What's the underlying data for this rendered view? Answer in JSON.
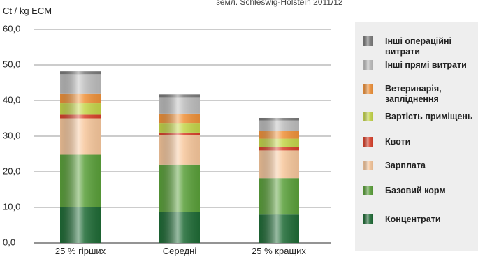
{
  "chart_data": {
    "type": "bar",
    "stacked": true,
    "subtitle": "земл. Schleswig-Holstein 2011/12",
    "ylabel": "Ct / kg ECM",
    "ylim": [
      0,
      60
    ],
    "yticks": [
      "0,0",
      "10,0",
      "20,0",
      "30,0",
      "40,0",
      "50,0",
      "60,0"
    ],
    "grid": true,
    "legend_position": "right",
    "categories": [
      "25 % гірших",
      "Середні",
      "25 % кращих"
    ],
    "series": [
      {
        "name": "Концентрати",
        "color": "#1f6b36",
        "values": [
          10.0,
          8.7,
          8.0
        ]
      },
      {
        "name": "Базовий корм",
        "color": "#5aa03a",
        "values": [
          14.8,
          13.3,
          10.2
        ]
      },
      {
        "name": "Зарплата",
        "color": "#f7c79c",
        "values": [
          10.2,
          8.2,
          7.8
        ]
      },
      {
        "name": "Квоти",
        "color": "#d9412b",
        "values": [
          1.0,
          0.8,
          1.0
        ]
      },
      {
        "name": "Вартість приміщень",
        "color": "#c5d64a",
        "values": [
          3.2,
          2.7,
          2.3
        ]
      },
      {
        "name": "Ветеринарія, запліднення",
        "color": "#f0923a",
        "values": [
          2.8,
          2.6,
          2.2
        ]
      },
      {
        "name": "Інші прямі витрати",
        "color": "#bdbdbd",
        "values": [
          5.4,
          4.6,
          2.9
        ]
      },
      {
        "name": "Інші операційні витрати",
        "color": "#7a7a7a",
        "values": [
          0.8,
          0.8,
          0.7
        ]
      }
    ]
  }
}
